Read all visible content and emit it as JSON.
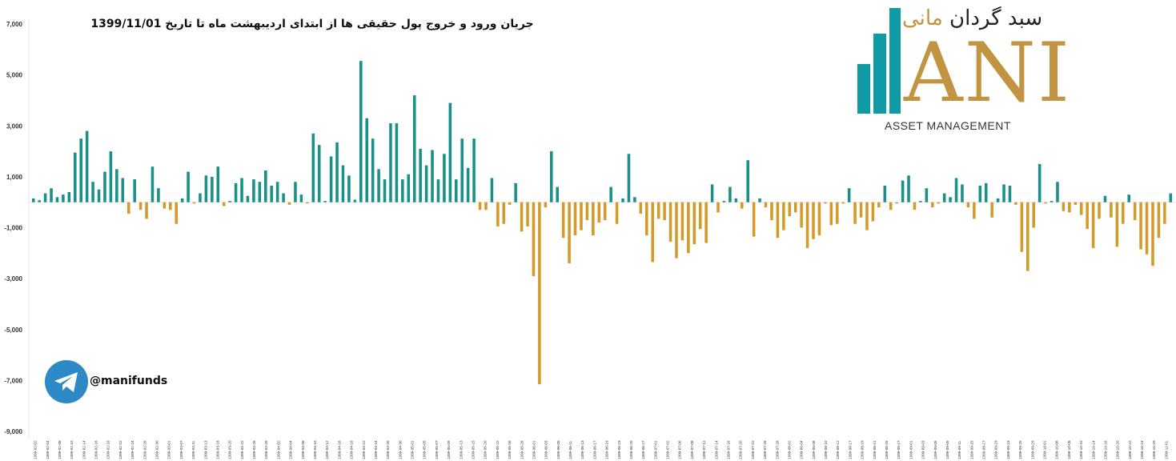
{
  "chart_data": {
    "type": "bar",
    "title": "جریان ورود و خروج پول حقیقی ها از ابتدای اردیبهشت ماه تا تاریخ 1399/11/01",
    "ylim": [
      -9000,
      7000
    ],
    "ytick_labels": [
      "7,000",
      "5,000",
      "3,000",
      "1,000",
      "-1,000",
      "-3,000",
      "-5,000",
      "-7,000",
      "-9,000"
    ],
    "ytick_values": [
      7000,
      5000,
      3000,
      1000,
      -1000,
      -3000,
      -5000,
      -7000,
      -9000
    ],
    "grid": false,
    "legend": "none",
    "colors": {
      "positive": "#1a9188",
      "negative": "#d49a2a"
    },
    "x_labels": [
      "1399-02-02",
      "1399-02-04",
      "1399-02-08",
      "1399-02-10",
      "1399-02-14",
      "1399-02-16",
      "1399-02-18",
      "1399-02-22",
      "1399-02-24",
      "1399-02-28",
      "1399-02-30",
      "1399-03-01",
      "1399-03-07",
      "1399-03-11",
      "1399-03-13",
      "1399-03-18",
      "1399-03-20",
      "1399-03-22",
      "1399-03-26",
      "1399-03-28",
      "1399-04-02",
      "1399-04-04",
      "1399-04-08",
      "1399-04-10",
      "1399-04-12",
      "1399-04-16",
      "1399-04-18",
      "1399-04-22",
      "1399-04-24",
      "1399-04-26",
      "1399-04-30",
      "1399-05-01",
      "1399-05-05",
      "1399-05-07",
      "1399-05-09",
      "1399-05-13",
      "1399-05-15",
      "1399-05-20",
      "1399-05-22",
      "1399-05-26",
      "1399-05-28",
      "1399-06-01",
      "1399-06-03",
      "1399-06-05",
      "1399-06-11",
      "1399-06-13",
      "1399-06-17",
      "1399-06-19",
      "1399-06-23",
      "1399-06-25",
      "1399-06-27",
      "1399-07-01",
      "1399-07-02",
      "1399-07-06",
      "1399-07-08",
      "1399-07-12",
      "1399-07-14",
      "1399-07-16",
      "1399-07-20",
      "1399-07-22",
      "1399-07-26",
      "1399-07-28",
      "1399-08-02",
      "1399-08-04",
      "1399-08-06",
      "1399-08-10",
      "1399-08-12",
      "1399-08-17",
      "1399-08-19",
      "1399-08-21",
      "1399-08-25",
      "1399-08-27",
      "1399-09-01",
      "1399-09-03",
      "1399-09-05",
      "1399-09-09",
      "1399-09-11",
      "1399-09-15",
      "1399-09-17",
      "1399-09-19",
      "1399-09-23",
      "1399-09-25",
      "1399-09-29",
      "1399-10-01",
      "1399-10-06",
      "1399-10-08",
      "1399-10-10",
      "1399-10-14",
      "1399-10-16",
      "1399-10-20",
      "1399-10-22",
      "1399-10-24",
      "1399-10-29",
      "1399-11-01"
    ],
    "values": [
      150,
      80,
      350,
      550,
      200,
      300,
      400,
      1950,
      2500,
      2800,
      800,
      500,
      1200,
      2000,
      1300,
      950,
      -450,
      900,
      -300,
      -650,
      1400,
      550,
      -250,
      -300,
      -850,
      150,
      1200,
      -50,
      350,
      1050,
      1000,
      1400,
      -150,
      50,
      750,
      950,
      250,
      900,
      800,
      1250,
      650,
      800,
      350,
      -100,
      800,
      300,
      -50,
      2700,
      2250,
      50,
      1800,
      2350,
      1450,
      1050,
      100,
      5550,
      3300,
      2500,
      1300,
      900,
      3100,
      3100,
      900,
      1100,
      4200,
      2100,
      1450,
      2050,
      900,
      1900,
      3900,
      900,
      2500,
      1350,
      2500,
      -300,
      -300,
      950,
      -950,
      -850,
      -100,
      750,
      -1150,
      -950,
      -2900,
      -7150,
      -200,
      2000,
      600,
      -1400,
      -2400,
      -1300,
      -1100,
      -700,
      -1300,
      -800,
      -700,
      600,
      -850,
      150,
      1900,
      200,
      -450,
      -1300,
      -2350,
      -650,
      -700,
      -1550,
      -2200,
      -1500,
      -2000,
      -1650,
      -1050,
      -1600,
      700,
      -400,
      50,
      600,
      150,
      -250,
      1650,
      -1350,
      150,
      -200,
      -700,
      -1400,
      -1100,
      -550,
      -400,
      -1000,
      -1800,
      -1450,
      -1300,
      -50,
      -900,
      -850,
      -50,
      550,
      -850,
      -600,
      -1100,
      -750,
      -200,
      650,
      -300,
      -50,
      850,
      1050,
      -300,
      50,
      550,
      -200,
      -50,
      350,
      200,
      950,
      700,
      -200,
      -650,
      650,
      750,
      -600,
      150,
      700,
      650,
      -100,
      -1950,
      -2700,
      -1000,
      1500,
      -50,
      50,
      800,
      -350,
      -400,
      -100,
      -500,
      -1050,
      -1800,
      -650,
      250,
      -600,
      -1750,
      -850,
      300,
      -700,
      -1850,
      -2050,
      -2500,
      -1400,
      -850,
      350
    ]
  },
  "logo": {
    "persian_name_dark": "سبد گردان",
    "persian_name_gold": "مانی",
    "brand_letters": "ANI",
    "subtitle": "ASSET MANAGEMENT"
  },
  "telegram": {
    "icon": "telegram-paper-plane-icon",
    "handle": "@manifunds"
  }
}
